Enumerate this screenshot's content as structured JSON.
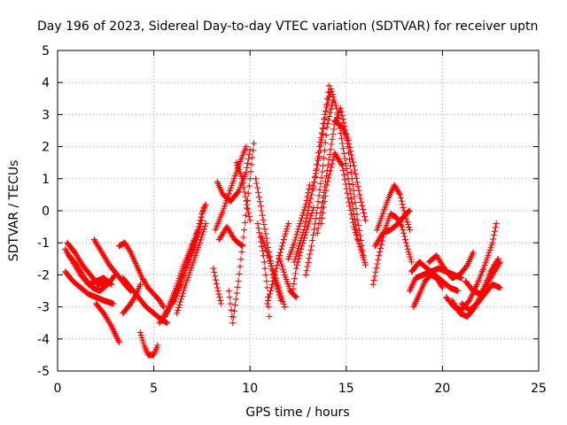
{
  "chart_data": {
    "type": "scatter",
    "title": "Day 196 of 2023, Sidereal Day-to-day VTEC variation (SDTVAR) for receiver uptn",
    "xlabel": "GPS time / hours",
    "ylabel": "SDTVAR / TECUs",
    "xlim": [
      0,
      25
    ],
    "ylim": [
      -5,
      5
    ],
    "xticks": [
      0,
      5,
      10,
      15,
      20,
      25
    ],
    "yticks": [
      -5,
      -4,
      -3,
      -2,
      -1,
      0,
      1,
      2,
      3,
      4,
      5
    ],
    "grid": true,
    "marker": "+",
    "color": "#ff0000",
    "series": [
      {
        "name": "trace-01",
        "points": [
          [
            0.4,
            -1.2
          ],
          [
            0.8,
            -1.6
          ],
          [
            1.2,
            -2.0
          ],
          [
            1.6,
            -2.3
          ],
          [
            2.0,
            -2.2
          ],
          [
            2.4,
            -2.1
          ],
          [
            2.8,
            -2.3
          ]
        ]
      },
      {
        "name": "trace-02",
        "points": [
          [
            0.5,
            -1.0
          ],
          [
            0.9,
            -1.3
          ],
          [
            1.3,
            -1.7
          ],
          [
            1.7,
            -2.0
          ],
          [
            2.1,
            -2.3
          ],
          [
            2.6,
            -2.2
          ]
        ]
      },
      {
        "name": "trace-03",
        "points": [
          [
            0.4,
            -1.9
          ],
          [
            0.8,
            -2.2
          ],
          [
            1.2,
            -2.4
          ],
          [
            1.6,
            -2.6
          ],
          [
            2.0,
            -2.7
          ],
          [
            2.4,
            -2.8
          ],
          [
            2.9,
            -2.9
          ]
        ]
      },
      {
        "name": "trace-04",
        "points": [
          [
            0.6,
            -1.4
          ],
          [
            1.0,
            -1.7
          ],
          [
            1.4,
            -2.1
          ],
          [
            1.8,
            -2.4
          ],
          [
            2.2,
            -2.5
          ],
          [
            2.6,
            -2.3
          ],
          [
            3.0,
            -2.0
          ]
        ]
      },
      {
        "name": "trace-05",
        "points": [
          [
            1.9,
            -0.9
          ],
          [
            2.3,
            -1.3
          ],
          [
            2.7,
            -1.7
          ],
          [
            3.1,
            -2.0
          ],
          [
            3.5,
            -2.3
          ],
          [
            3.8,
            -2.5
          ]
        ]
      },
      {
        "name": "trace-06",
        "points": [
          [
            2.0,
            -2.9
          ],
          [
            2.4,
            -3.2
          ],
          [
            2.8,
            -3.6
          ],
          [
            3.2,
            -4.1
          ]
        ]
      },
      {
        "name": "trace-07",
        "points": [
          [
            3.2,
            -1.1
          ],
          [
            3.5,
            -1.0
          ],
          [
            3.8,
            -1.3
          ],
          [
            4.1,
            -1.7
          ],
          [
            4.4,
            -2.1
          ],
          [
            4.7,
            -2.4
          ],
          [
            5.0,
            -2.6
          ],
          [
            5.3,
            -2.8
          ],
          [
            5.5,
            -3.0
          ]
        ]
      },
      {
        "name": "trace-08",
        "points": [
          [
            3.4,
            -2.1
          ],
          [
            3.8,
            -2.4
          ],
          [
            4.2,
            -2.7
          ],
          [
            4.6,
            -3.0
          ],
          [
            5.0,
            -3.2
          ],
          [
            5.4,
            -3.4
          ],
          [
            5.7,
            -3.5
          ]
        ]
      },
      {
        "name": "trace-09",
        "points": [
          [
            3.4,
            -3.2
          ],
          [
            3.8,
            -2.9
          ],
          [
            4.1,
            -2.6
          ],
          [
            4.3,
            -2.3
          ]
        ]
      },
      {
        "name": "trace-10",
        "points": [
          [
            4.3,
            -3.8
          ],
          [
            4.5,
            -4.2
          ],
          [
            4.7,
            -4.5
          ],
          [
            5.0,
            -4.5
          ],
          [
            5.2,
            -4.2
          ]
        ]
      },
      {
        "name": "trace-11",
        "points": [
          [
            5.3,
            -3.5
          ],
          [
            5.7,
            -3.1
          ],
          [
            6.1,
            -2.5
          ],
          [
            6.5,
            -1.8
          ],
          [
            6.9,
            -1.2
          ],
          [
            7.3,
            -0.6
          ],
          [
            7.6,
            0.1
          ]
        ]
      },
      {
        "name": "trace-12",
        "points": [
          [
            5.6,
            -3.3
          ],
          [
            6.0,
            -2.8
          ],
          [
            6.4,
            -2.2
          ],
          [
            6.8,
            -1.6
          ],
          [
            7.2,
            -1.0
          ],
          [
            7.5,
            -0.3
          ]
        ]
      },
      {
        "name": "trace-13",
        "points": [
          [
            6.0,
            -2.9
          ],
          [
            6.4,
            -2.3
          ],
          [
            6.8,
            -1.5
          ],
          [
            7.2,
            -0.8
          ],
          [
            7.5,
            -0.1
          ],
          [
            7.7,
            0.2
          ]
        ]
      },
      {
        "name": "trace-14",
        "points": [
          [
            6.2,
            -3.2
          ],
          [
            6.6,
            -2.4
          ],
          [
            7.0,
            -1.7
          ],
          [
            7.4,
            -1.0
          ],
          [
            7.7,
            -0.4
          ]
        ]
      },
      {
        "name": "trace-15",
        "points": [
          [
            8.1,
            -1.8
          ],
          [
            8.3,
            -2.4
          ],
          [
            8.5,
            -2.9
          ]
        ]
      },
      {
        "name": "trace-16",
        "points": [
          [
            8.2,
            -0.6
          ],
          [
            8.6,
            0.0
          ],
          [
            9.0,
            0.7
          ],
          [
            9.4,
            1.4
          ],
          [
            9.8,
            2.0
          ]
        ]
      },
      {
        "name": "trace-17",
        "points": [
          [
            8.3,
            0.9
          ],
          [
            8.6,
            0.5
          ],
          [
            9.0,
            0.3
          ],
          [
            9.4,
            0.6
          ],
          [
            9.8,
            1.2
          ],
          [
            10.0,
            1.9
          ]
        ]
      },
      {
        "name": "trace-18",
        "points": [
          [
            8.4,
            -0.9
          ],
          [
            8.8,
            -0.5
          ],
          [
            9.2,
            -0.9
          ],
          [
            9.6,
            -1.1
          ]
        ]
      },
      {
        "name": "trace-19",
        "points": [
          [
            8.9,
            -2.5
          ],
          [
            9.1,
            -3.5
          ],
          [
            9.4,
            -2.2
          ],
          [
            9.7,
            -0.6
          ],
          [
            10.0,
            1.0
          ],
          [
            10.2,
            2.1
          ]
        ]
      },
      {
        "name": "trace-20",
        "points": [
          [
            9.3,
            1.5
          ],
          [
            9.6,
            1.0
          ],
          [
            9.8,
            0.3
          ],
          [
            10.0,
            -0.3
          ]
        ]
      },
      {
        "name": "trace-21",
        "points": [
          [
            10.3,
            1.0
          ],
          [
            10.6,
            0.0
          ],
          [
            10.9,
            -1.0
          ],
          [
            11.2,
            -2.0
          ],
          [
            11.6,
            -2.8
          ]
        ]
      },
      {
        "name": "trace-22",
        "points": [
          [
            10.4,
            -0.4
          ],
          [
            10.7,
            -1.4
          ],
          [
            10.9,
            -2.4
          ],
          [
            11.0,
            -3.3
          ]
        ]
      },
      {
        "name": "trace-23",
        "points": [
          [
            10.6,
            -0.8
          ],
          [
            10.9,
            -1.3
          ],
          [
            11.2,
            -1.9
          ],
          [
            11.5,
            -2.4
          ],
          [
            11.8,
            -3.0
          ]
        ]
      },
      {
        "name": "trace-24",
        "points": [
          [
            10.9,
            -2.9
          ],
          [
            11.2,
            -2.2
          ],
          [
            11.5,
            -1.5
          ],
          [
            11.8,
            -0.8
          ],
          [
            12.0,
            -0.4
          ]
        ]
      },
      {
        "name": "trace-25",
        "points": [
          [
            11.5,
            -1.4
          ],
          [
            11.8,
            -2.0
          ],
          [
            12.1,
            -2.5
          ],
          [
            12.4,
            -2.7
          ]
        ]
      },
      {
        "name": "trace-26",
        "points": [
          [
            12.0,
            -1.5
          ],
          [
            12.3,
            -1.0
          ],
          [
            12.6,
            -0.4
          ],
          [
            12.9,
            0.2
          ],
          [
            13.1,
            0.8
          ]
        ]
      },
      {
        "name": "trace-27",
        "points": [
          [
            12.2,
            -2.6
          ],
          [
            12.4,
            -1.8
          ],
          [
            12.7,
            -1.1
          ],
          [
            13.0,
            -0.5
          ],
          [
            13.3,
            0.1
          ]
        ]
      },
      {
        "name": "trace-28",
        "points": [
          [
            12.3,
            -1.6
          ],
          [
            12.8,
            -0.6
          ],
          [
            13.2,
            0.5
          ],
          [
            13.6,
            1.7
          ],
          [
            13.9,
            2.9
          ],
          [
            14.1,
            3.9
          ]
        ]
      },
      {
        "name": "trace-29",
        "points": [
          [
            12.9,
            -2.0
          ],
          [
            13.2,
            -1.1
          ],
          [
            13.5,
            0.1
          ],
          [
            13.8,
            1.4
          ],
          [
            14.0,
            2.6
          ],
          [
            14.3,
            3.4
          ]
        ]
      },
      {
        "name": "trace-30",
        "points": [
          [
            13.3,
            0.7
          ],
          [
            13.6,
            2.0
          ],
          [
            13.9,
            3.0
          ],
          [
            14.2,
            3.8
          ],
          [
            14.5,
            3.2
          ],
          [
            14.8,
            2.1
          ],
          [
            15.1,
            1.0
          ],
          [
            15.4,
            -0.1
          ],
          [
            15.6,
            -0.9
          ]
        ]
      },
      {
        "name": "trace-31",
        "points": [
          [
            13.5,
            -0.7
          ],
          [
            13.8,
            0.4
          ],
          [
            14.1,
            1.6
          ],
          [
            14.4,
            2.7
          ],
          [
            14.7,
            3.2
          ],
          [
            15.0,
            2.4
          ],
          [
            15.3,
            1.0
          ],
          [
            15.6,
            -0.3
          ],
          [
            15.9,
            -1.4
          ]
        ]
      },
      {
        "name": "trace-32",
        "points": [
          [
            13.7,
            -0.4
          ],
          [
            14.0,
            0.8
          ],
          [
            14.4,
            1.8
          ],
          [
            14.8,
            1.4
          ],
          [
            15.1,
            0.4
          ],
          [
            15.4,
            -0.5
          ],
          [
            15.8,
            -1.3
          ],
          [
            16.0,
            -1.7
          ]
        ]
      },
      {
        "name": "trace-33",
        "points": [
          [
            14.4,
            2.8
          ],
          [
            14.8,
            2.6
          ],
          [
            15.1,
            2.2
          ],
          [
            15.4,
            1.4
          ],
          [
            15.7,
            0.5
          ],
          [
            16.0,
            -0.3
          ]
        ]
      },
      {
        "name": "trace-34",
        "points": [
          [
            16.4,
            -2.3
          ],
          [
            16.7,
            -1.4
          ],
          [
            17.0,
            -0.6
          ],
          [
            17.3,
            -0.1
          ],
          [
            17.6,
            -0.2
          ],
          [
            17.9,
            -0.5
          ],
          [
            18.2,
            -1.2
          ],
          [
            18.4,
            -1.6
          ]
        ]
      },
      {
        "name": "trace-35",
        "points": [
          [
            16.6,
            -0.6
          ],
          [
            16.9,
            -0.1
          ],
          [
            17.2,
            0.4
          ],
          [
            17.5,
            0.8
          ],
          [
            17.8,
            0.5
          ],
          [
            18.0,
            0.0
          ],
          [
            18.3,
            -0.6
          ]
        ]
      },
      {
        "name": "trace-36",
        "points": [
          [
            16.5,
            -1.1
          ],
          [
            16.9,
            -0.7
          ],
          [
            17.3,
            -0.6
          ],
          [
            17.7,
            -0.4
          ],
          [
            18.1,
            -0.1
          ],
          [
            18.3,
            0.0
          ]
        ]
      },
      {
        "name": "trace-37",
        "points": [
          [
            18.3,
            -2.5
          ],
          [
            18.6,
            -2.1
          ],
          [
            19.0,
            -2.0
          ],
          [
            19.4,
            -1.9
          ],
          [
            19.8,
            -1.8
          ],
          [
            20.2,
            -1.9
          ],
          [
            20.6,
            -2.0
          ],
          [
            21.0,
            -2.1
          ]
        ]
      },
      {
        "name": "trace-38",
        "points": [
          [
            18.4,
            -1.9
          ],
          [
            18.8,
            -1.6
          ],
          [
            19.2,
            -1.8
          ],
          [
            19.6,
            -2.0
          ],
          [
            20.0,
            -2.2
          ],
          [
            20.4,
            -2.4
          ],
          [
            20.8,
            -2.5
          ]
        ]
      },
      {
        "name": "trace-39",
        "points": [
          [
            18.5,
            -3.0
          ],
          [
            18.8,
            -2.6
          ],
          [
            19.1,
            -2.2
          ],
          [
            19.4,
            -2.0
          ],
          [
            19.7,
            -2.1
          ],
          [
            20.0,
            -2.4
          ]
        ]
      },
      {
        "name": "trace-40",
        "points": [
          [
            19.3,
            -1.6
          ],
          [
            19.7,
            -1.4
          ],
          [
            20.1,
            -1.8
          ],
          [
            20.5,
            -2.1
          ],
          [
            20.9,
            -2.0
          ],
          [
            21.3,
            -1.7
          ],
          [
            21.6,
            -1.3
          ]
        ]
      },
      {
        "name": "trace-41",
        "points": [
          [
            20.2,
            -2.7
          ],
          [
            20.6,
            -3.0
          ],
          [
            21.0,
            -3.1
          ],
          [
            21.4,
            -2.8
          ],
          [
            21.8,
            -2.3
          ],
          [
            22.2,
            -1.7
          ],
          [
            22.6,
            -1.0
          ],
          [
            22.8,
            -0.4
          ]
        ]
      },
      {
        "name": "trace-42",
        "points": [
          [
            20.5,
            -2.8
          ],
          [
            20.9,
            -3.2
          ],
          [
            21.3,
            -3.3
          ],
          [
            21.7,
            -3.0
          ],
          [
            22.1,
            -2.5
          ],
          [
            22.5,
            -1.9
          ],
          [
            22.9,
            -1.5
          ]
        ]
      },
      {
        "name": "trace-43",
        "points": [
          [
            21.0,
            -2.9
          ],
          [
            21.4,
            -3.1
          ],
          [
            21.8,
            -2.9
          ],
          [
            22.2,
            -2.6
          ],
          [
            22.6,
            -2.3
          ],
          [
            23.0,
            -2.4
          ]
        ]
      },
      {
        "name": "trace-44",
        "points": [
          [
            21.2,
            -2.2
          ],
          [
            21.6,
            -2.5
          ],
          [
            22.0,
            -2.6
          ],
          [
            22.4,
            -2.2
          ],
          [
            22.8,
            -1.8
          ],
          [
            23.0,
            -1.6
          ]
        ]
      }
    ]
  }
}
